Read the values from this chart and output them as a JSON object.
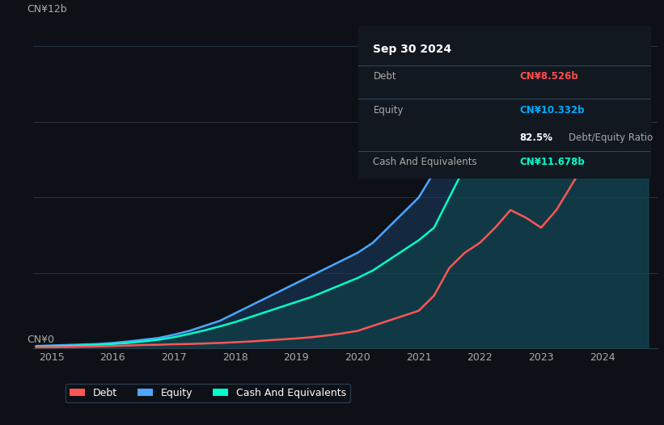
{
  "bg_color": "#0d1117",
  "plot_bg_color": "#0d1117",
  "title_box": {
    "date": "Sep 30 2024",
    "debt_label": "Debt",
    "debt_value": "CN¥8.526b",
    "debt_color": "#ff4d4d",
    "equity_label": "Equity",
    "equity_value": "CN¥10.332b",
    "equity_color": "#00aaff",
    "ratio_bold": "82.5%",
    "ratio_text": " Debt/Equity Ratio",
    "ratio_bold_color": "#ffffff",
    "ratio_text_color": "#aaaaaa",
    "cash_label": "Cash And Equivalents",
    "cash_value": "CN¥11.678b",
    "cash_color": "#00ffcc",
    "label_color": "#aaaaaa",
    "box_color": "#111820"
  },
  "ylabel_top": "CN¥12b",
  "ylabel_bottom": "CN¥0",
  "grid_color": "#2a3a4a",
  "line_debt_color": "#ff5555",
  "line_equity_color": "#4da6ff",
  "line_cash_color": "#00ffcc",
  "fill_equity_color": "#1a3a5c",
  "fill_cash_color": "#0d4a4a",
  "legend": [
    {
      "label": "Debt",
      "color": "#ff5555"
    },
    {
      "label": "Equity",
      "color": "#4da6ff"
    },
    {
      "label": "Cash And Equivalents",
      "color": "#00ffcc"
    }
  ],
  "x_ticks": [
    2015,
    2016,
    2017,
    2018,
    2019,
    2020,
    2021,
    2022,
    2023,
    2024
  ],
  "ylim": [
    0,
    13
  ],
  "years": [
    2014.75,
    2015.0,
    2015.25,
    2015.5,
    2015.75,
    2016.0,
    2016.25,
    2016.5,
    2016.75,
    2017.0,
    2017.25,
    2017.5,
    2017.75,
    2018.0,
    2018.25,
    2018.5,
    2018.75,
    2019.0,
    2019.25,
    2019.5,
    2019.75,
    2020.0,
    2020.25,
    2020.5,
    2020.75,
    2021.0,
    2021.25,
    2021.5,
    2021.75,
    2022.0,
    2022.25,
    2022.5,
    2022.75,
    2023.0,
    2023.25,
    2023.5,
    2023.75,
    2024.0,
    2024.25,
    2024.5,
    2024.75
  ],
  "debt": [
    0.05,
    0.05,
    0.06,
    0.07,
    0.08,
    0.1,
    0.12,
    0.14,
    0.15,
    0.17,
    0.18,
    0.2,
    0.22,
    0.25,
    0.28,
    0.32,
    0.36,
    0.4,
    0.45,
    0.52,
    0.6,
    0.7,
    0.9,
    1.1,
    1.3,
    1.5,
    2.1,
    3.2,
    3.8,
    4.2,
    4.8,
    5.5,
    5.2,
    4.8,
    5.5,
    6.5,
    7.5,
    8.0,
    8.3,
    8.526,
    8.526
  ],
  "equity": [
    0.1,
    0.12,
    0.14,
    0.16,
    0.18,
    0.22,
    0.28,
    0.35,
    0.42,
    0.55,
    0.7,
    0.9,
    1.1,
    1.4,
    1.7,
    2.0,
    2.3,
    2.6,
    2.9,
    3.2,
    3.5,
    3.8,
    4.2,
    4.8,
    5.4,
    6.0,
    7.0,
    9.0,
    10.5,
    11.5,
    12.0,
    11.5,
    10.0,
    8.5,
    9.0,
    9.5,
    9.8,
    10.0,
    10.1,
    10.2,
    10.332
  ],
  "cash": [
    0.08,
    0.09,
    0.1,
    0.12,
    0.14,
    0.18,
    0.22,
    0.28,
    0.35,
    0.45,
    0.58,
    0.72,
    0.88,
    1.05,
    1.25,
    1.45,
    1.65,
    1.85,
    2.05,
    2.3,
    2.55,
    2.8,
    3.1,
    3.5,
    3.9,
    4.3,
    4.8,
    6.0,
    7.2,
    8.2,
    9.5,
    10.5,
    9.2,
    7.8,
    8.8,
    9.5,
    9.8,
    10.5,
    11.0,
    11.4,
    11.678
  ]
}
